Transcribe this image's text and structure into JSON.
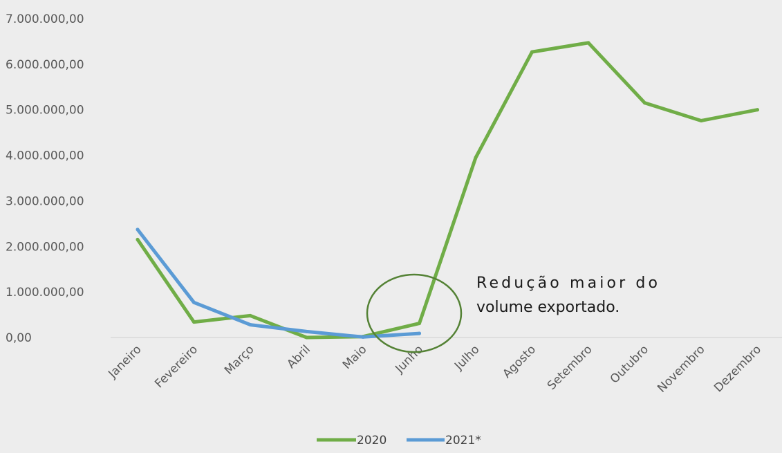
{
  "chart_data": {
    "type": "line",
    "categories": [
      "Janeiro",
      "Fevereiro",
      "Março",
      "Abril",
      "Maio",
      "Junho",
      "Julho",
      "Agosto",
      "Setembro",
      "Outubro",
      "Novembro",
      "Dezembro"
    ],
    "series": [
      {
        "name": "2020",
        "color": "#70ad47",
        "values": [
          2150000,
          340000,
          480000,
          0,
          20000,
          310000,
          3950000,
          6270000,
          6470000,
          5150000,
          4760000,
          5000000
        ]
      },
      {
        "name": "2021*",
        "color": "#5b9bd5",
        "values": [
          2370000,
          770000,
          280000,
          130000,
          10000,
          90000,
          null,
          null,
          null,
          null,
          null,
          null
        ]
      }
    ],
    "yticks": [
      "0,00",
      "1.000.000,00",
      "2.000.000,00",
      "3.000.000,00",
      "4.000.000,00",
      "5.000.000,00",
      "6.000.000,00",
      "7.000.000,00"
    ],
    "ylim": [
      0,
      7000000
    ],
    "grid": false,
    "legend": "bottom-center",
    "annotation": {
      "line1": "Redução maior do",
      "line2": "volume exportado.",
      "highlight_category": "Junho",
      "circle_color": "#548235"
    }
  }
}
